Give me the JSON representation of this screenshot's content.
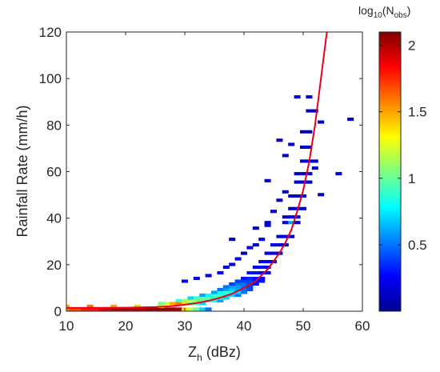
{
  "chart_data": {
    "type": "heatmap",
    "xlabel": "Z",
    "xlabel_sub": "h",
    "xlabel_unit": " (dBz)",
    "ylabel": "Rainfall Rate (mm/h)",
    "xlim": [
      10,
      60
    ],
    "ylim": [
      0,
      120
    ],
    "xticks": [
      10,
      20,
      30,
      40,
      50,
      60
    ],
    "yticks": [
      0,
      20,
      40,
      60,
      80,
      100,
      120
    ],
    "grid": false,
    "colorbar": {
      "title_main": "log",
      "title_sub": "10",
      "title_paren": "(N",
      "title_sub2": "obs",
      "title_close": ")",
      "range": [
        0,
        2.1
      ],
      "ticks": [
        0.5,
        1,
        1.5,
        2
      ],
      "colormap": "jet"
    },
    "fit_curve": {
      "color": "#e8001c",
      "points": [
        [
          10,
          1.4
        ],
        [
          20,
          1.5
        ],
        [
          25,
          1.8
        ],
        [
          28,
          2.2
        ],
        [
          30,
          2.8
        ],
        [
          32,
          3.5
        ],
        [
          34,
          4.5
        ],
        [
          36,
          5.8
        ],
        [
          38,
          7.5
        ],
        [
          40,
          10
        ],
        [
          42,
          13
        ],
        [
          44,
          18
        ],
        [
          46,
          25
        ],
        [
          47,
          29.5
        ],
        [
          48,
          35
        ],
        [
          49,
          43
        ],
        [
          50,
          52
        ],
        [
          51,
          64
        ],
        [
          52,
          80
        ],
        [
          53,
          100
        ],
        [
          54,
          120
        ]
      ]
    },
    "density_cells": [
      [
        10,
        0.9,
        1.6
      ],
      [
        11,
        0.9,
        1.7
      ],
      [
        12,
        0.9,
        1.7
      ],
      [
        13,
        0.9,
        1.8
      ],
      [
        14,
        0.9,
        1.8
      ],
      [
        15,
        0.9,
        1.8
      ],
      [
        16,
        0.9,
        1.9
      ],
      [
        17,
        0.9,
        1.9
      ],
      [
        18,
        0.9,
        2.0
      ],
      [
        19,
        0.9,
        2.0
      ],
      [
        20,
        0.9,
        2.0
      ],
      [
        21,
        0.9,
        2.0
      ],
      [
        22,
        0.9,
        2.0
      ],
      [
        23,
        0.9,
        2.0
      ],
      [
        24,
        0.9,
        2.05
      ],
      [
        25,
        0.9,
        2.05
      ],
      [
        26,
        0.9,
        2.05
      ],
      [
        27,
        0.9,
        2.05
      ],
      [
        28,
        0.9,
        2.05
      ],
      [
        29,
        0.9,
        2.0
      ],
      [
        10,
        2.1,
        1.5
      ],
      [
        14,
        2.1,
        1.6
      ],
      [
        18,
        2.1,
        1.5
      ],
      [
        22,
        2.1,
        1.4
      ],
      [
        26,
        2.1,
        1.3
      ],
      [
        30,
        0.9,
        1.4
      ],
      [
        31,
        0.9,
        1.2
      ],
      [
        32,
        0.9,
        1.0
      ],
      [
        33,
        0.9,
        0.7
      ],
      [
        34,
        0.9,
        0.5
      ],
      [
        26,
        3.3,
        1.0
      ],
      [
        27,
        3.3,
        1.2
      ],
      [
        28,
        3.3,
        1.5
      ],
      [
        29,
        3.3,
        1.6
      ],
      [
        30,
        3.3,
        1.4
      ],
      [
        31,
        3.3,
        1.0
      ],
      [
        32,
        3.3,
        0.9
      ],
      [
        33,
        3.3,
        0.7
      ],
      [
        29,
        4.5,
        0.9
      ],
      [
        30,
        4.5,
        1.1
      ],
      [
        31,
        4.5,
        1.2
      ],
      [
        32,
        4.5,
        1.1
      ],
      [
        33,
        4.5,
        1.0
      ],
      [
        34,
        4.5,
        0.9
      ],
      [
        35,
        4.5,
        0.8
      ],
      [
        36,
        4.5,
        0.6
      ],
      [
        31,
        5.7,
        0.7
      ],
      [
        32,
        5.7,
        0.9
      ],
      [
        33,
        5.7,
        1.0
      ],
      [
        34,
        5.7,
        1.0
      ],
      [
        35,
        5.7,
        0.9
      ],
      [
        36,
        5.7,
        0.9
      ],
      [
        37,
        5.7,
        0.7
      ],
      [
        33,
        6.9,
        0.6
      ],
      [
        34,
        6.9,
        0.8
      ],
      [
        35,
        6.9,
        0.9
      ],
      [
        36,
        6.9,
        0.9
      ],
      [
        37,
        6.9,
        0.8
      ],
      [
        38,
        6.9,
        0.7
      ],
      [
        39,
        6.9,
        0.5
      ],
      [
        35,
        8.1,
        0.6
      ],
      [
        36,
        8.1,
        0.8
      ],
      [
        37,
        8.1,
        0.9
      ],
      [
        38,
        8.1,
        0.8
      ],
      [
        39,
        8.1,
        0.7
      ],
      [
        40,
        8.1,
        0.5
      ],
      [
        36,
        9.3,
        0.5
      ],
      [
        37,
        9.3,
        0.6
      ],
      [
        38,
        9.3,
        0.7
      ],
      [
        39,
        9.3,
        0.6
      ],
      [
        40,
        9.3,
        0.5
      ],
      [
        41,
        9.3,
        0.4
      ],
      [
        37,
        10.5,
        0.5
      ],
      [
        38,
        10.5,
        0.6
      ],
      [
        39,
        10.5,
        0.6
      ],
      [
        40,
        10.5,
        0.5
      ],
      [
        41,
        10.5,
        0.4
      ],
      [
        38,
        11.7,
        0.4
      ],
      [
        39,
        11.7,
        0.5
      ],
      [
        40,
        11.7,
        0.5
      ],
      [
        41,
        11.7,
        0.4
      ],
      [
        42,
        11.7,
        0.3
      ],
      [
        39,
        12.9,
        0.4
      ],
      [
        40,
        12.9,
        0.4
      ],
      [
        41,
        12.9,
        0.4
      ],
      [
        42,
        12.9,
        0.3
      ],
      [
        43,
        12.9,
        0.3
      ],
      [
        40,
        14.1,
        0.3
      ],
      [
        41,
        14.1,
        0.35
      ],
      [
        42,
        14.1,
        0.3
      ],
      [
        43,
        14.1,
        0.25
      ],
      [
        41,
        16.5,
        0.3
      ],
      [
        42,
        16.5,
        0.3
      ],
      [
        43,
        16.5,
        0.25
      ],
      [
        44,
        16.5,
        0.2
      ],
      [
        42,
        18.9,
        0.25
      ],
      [
        43,
        18.9,
        0.3
      ],
      [
        44,
        18.9,
        0.2
      ],
      [
        43,
        21.3,
        0.2
      ],
      [
        44,
        21.3,
        0.25
      ],
      [
        45,
        21.3,
        0.2
      ],
      [
        44,
        24.9,
        0.2
      ],
      [
        45,
        24.9,
        0.2
      ],
      [
        46,
        24.9,
        0.15
      ],
      [
        45,
        28.5,
        0.2
      ],
      [
        46,
        28.5,
        0.2
      ],
      [
        47,
        28.5,
        0.15
      ],
      [
        46,
        32.1,
        0.15
      ],
      [
        47,
        32.1,
        0.2
      ],
      [
        48,
        32.1,
        0.15
      ],
      [
        44,
        38.1,
        0.15
      ],
      [
        47,
        38.1,
        0.2
      ],
      [
        48,
        38.1,
        0.6
      ],
      [
        49,
        38.1,
        0.15
      ],
      [
        47,
        40.5,
        0.15
      ],
      [
        48,
        40.5,
        0.2
      ],
      [
        49,
        40.5,
        0.15
      ],
      [
        48,
        44.1,
        0.15
      ],
      [
        49,
        44.1,
        0.2
      ],
      [
        50,
        44.1,
        0.15
      ],
      [
        48,
        49.5,
        0.15
      ],
      [
        49,
        49.5,
        0.15
      ],
      [
        50,
        49.5,
        0.2
      ],
      [
        49,
        55.5,
        0.15
      ],
      [
        50,
        55.5,
        0.2
      ],
      [
        51,
        55.5,
        0.15
      ],
      [
        49,
        59.1,
        0.15
      ],
      [
        50,
        59.1,
        0.15
      ],
      [
        51,
        59.1,
        0.2
      ],
      [
        50,
        64.5,
        0.15
      ],
      [
        51,
        64.5,
        0.2
      ],
      [
        52,
        64.5,
        0.15
      ],
      [
        50,
        70.5,
        0.15
      ],
      [
        51,
        70.5,
        0.15
      ],
      [
        50,
        77.1,
        0.15
      ],
      [
        51,
        77.1,
        0.15
      ],
      [
        51,
        86.1,
        0.15
      ],
      [
        52,
        86.1,
        0.15
      ],
      [
        49,
        92.1,
        0.15
      ],
      [
        51,
        92.1,
        0.15
      ],
      [
        30,
        12.9,
        0.2
      ],
      [
        32,
        14.1,
        0.25
      ],
      [
        34,
        15.3,
        0.2
      ],
      [
        36,
        16.5,
        0.25
      ],
      [
        37,
        18.9,
        0.2
      ],
      [
        38,
        20.1,
        0.2
      ],
      [
        39,
        22.5,
        0.2
      ],
      [
        40,
        24.9,
        0.15
      ],
      [
        41,
        27.3,
        0.2
      ],
      [
        42,
        28.5,
        0.15
      ],
      [
        43,
        30.9,
        0.2
      ],
      [
        38,
        30.9,
        0.15
      ],
      [
        42,
        35.7,
        0.15
      ],
      [
        44,
        36.9,
        0.15
      ],
      [
        45,
        42.9,
        0.15
      ],
      [
        46,
        47.7,
        0.15
      ],
      [
        47,
        51.3,
        0.15
      ],
      [
        44,
        56.1,
        0.15
      ],
      [
        53,
        50.1,
        0.15
      ],
      [
        47,
        66.9,
        0.15
      ],
      [
        48,
        71.7,
        0.15
      ],
      [
        52,
        61.5,
        0.15
      ],
      [
        56,
        59.1,
        0.15
      ],
      [
        58,
        82.5,
        0.15
      ],
      [
        53,
        81.3,
        0.15
      ],
      [
        46,
        73.5,
        0.15
      ]
    ]
  }
}
